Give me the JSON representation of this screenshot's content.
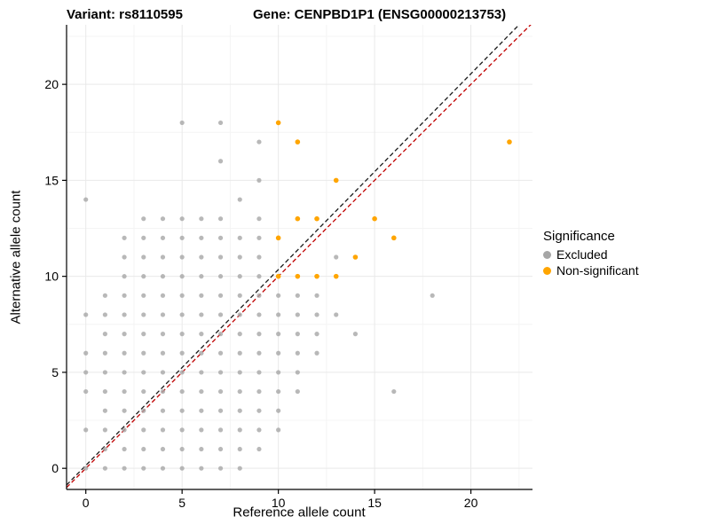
{
  "header": {
    "variant_title": "Variant: rs8110595",
    "gene_title": "Gene: CENPBD1P1 (ENSG00000213753)"
  },
  "chart_data": {
    "type": "scatter",
    "title": "",
    "xlabel": "Reference allele count",
    "ylabel": "Alternative allele count",
    "xlim": [
      -1,
      23.2
    ],
    "ylim": [
      -1.1,
      23.1
    ],
    "xticks": [
      0,
      5,
      10,
      15,
      20
    ],
    "yticks": [
      0,
      5,
      10,
      15,
      20
    ],
    "grid": true,
    "legend": {
      "title": "Significance",
      "position": "right",
      "items": [
        {
          "label": "Excluded",
          "color": "#a6a6a6"
        },
        {
          "label": "Non-significant",
          "color": "#FFA500"
        }
      ]
    },
    "series": [
      {
        "name": "Excluded",
        "color": "#a6a6a6",
        "opacity": 0.8,
        "radius": 2.6,
        "points": [
          [
            0,
            0
          ],
          [
            1,
            0
          ],
          [
            2,
            0
          ],
          [
            3,
            0
          ],
          [
            4,
            0
          ],
          [
            5,
            0
          ],
          [
            6,
            0
          ],
          [
            7,
            0
          ],
          [
            8,
            0
          ],
          [
            1,
            1
          ],
          [
            2,
            1
          ],
          [
            3,
            1
          ],
          [
            4,
            1
          ],
          [
            5,
            1
          ],
          [
            6,
            1
          ],
          [
            7,
            1
          ],
          [
            8,
            1
          ],
          [
            9,
            1
          ],
          [
            0,
            2
          ],
          [
            1,
            2
          ],
          [
            2,
            2
          ],
          [
            3,
            2
          ],
          [
            4,
            2
          ],
          [
            5,
            2
          ],
          [
            6,
            2
          ],
          [
            7,
            2
          ],
          [
            8,
            2
          ],
          [
            9,
            2
          ],
          [
            10,
            2
          ],
          [
            1,
            3
          ],
          [
            2,
            3
          ],
          [
            3,
            3
          ],
          [
            4,
            3
          ],
          [
            5,
            3
          ],
          [
            6,
            3
          ],
          [
            7,
            3
          ],
          [
            8,
            3
          ],
          [
            9,
            3
          ],
          [
            10,
            3
          ],
          [
            0,
            4
          ],
          [
            1,
            4
          ],
          [
            2,
            4
          ],
          [
            3,
            4
          ],
          [
            4,
            4
          ],
          [
            5,
            4
          ],
          [
            6,
            4
          ],
          [
            7,
            4
          ],
          [
            8,
            4
          ],
          [
            9,
            4
          ],
          [
            10,
            4
          ],
          [
            11,
            4
          ],
          [
            16,
            4
          ],
          [
            0,
            5
          ],
          [
            1,
            5
          ],
          [
            2,
            5
          ],
          [
            3,
            5
          ],
          [
            4,
            5
          ],
          [
            5,
            5
          ],
          [
            6,
            5
          ],
          [
            7,
            5
          ],
          [
            8,
            5
          ],
          [
            9,
            5
          ],
          [
            10,
            5
          ],
          [
            11,
            5
          ],
          [
            0,
            6
          ],
          [
            1,
            6
          ],
          [
            2,
            6
          ],
          [
            3,
            6
          ],
          [
            4,
            6
          ],
          [
            5,
            6
          ],
          [
            6,
            6
          ],
          [
            7,
            6
          ],
          [
            8,
            6
          ],
          [
            9,
            6
          ],
          [
            10,
            6
          ],
          [
            11,
            6
          ],
          [
            12,
            6
          ],
          [
            1,
            7
          ],
          [
            2,
            7
          ],
          [
            3,
            7
          ],
          [
            4,
            7
          ],
          [
            5,
            7
          ],
          [
            6,
            7
          ],
          [
            7,
            7
          ],
          [
            8,
            7
          ],
          [
            9,
            7
          ],
          [
            10,
            7
          ],
          [
            11,
            7
          ],
          [
            12,
            7
          ],
          [
            14,
            7
          ],
          [
            0,
            8
          ],
          [
            1,
            8
          ],
          [
            2,
            8
          ],
          [
            3,
            8
          ],
          [
            4,
            8
          ],
          [
            5,
            8
          ],
          [
            6,
            8
          ],
          [
            7,
            8
          ],
          [
            8,
            8
          ],
          [
            9,
            8
          ],
          [
            10,
            8
          ],
          [
            11,
            8
          ],
          [
            12,
            8
          ],
          [
            13,
            8
          ],
          [
            1,
            9
          ],
          [
            2,
            9
          ],
          [
            3,
            9
          ],
          [
            4,
            9
          ],
          [
            5,
            9
          ],
          [
            6,
            9
          ],
          [
            7,
            9
          ],
          [
            8,
            9
          ],
          [
            9,
            9
          ],
          [
            10,
            9
          ],
          [
            11,
            9
          ],
          [
            12,
            9
          ],
          [
            18,
            9
          ],
          [
            2,
            10
          ],
          [
            3,
            10
          ],
          [
            4,
            10
          ],
          [
            5,
            10
          ],
          [
            6,
            10
          ],
          [
            7,
            10
          ],
          [
            8,
            10
          ],
          [
            9,
            10
          ],
          [
            2,
            11
          ],
          [
            3,
            11
          ],
          [
            4,
            11
          ],
          [
            5,
            11
          ],
          [
            6,
            11
          ],
          [
            7,
            11
          ],
          [
            8,
            11
          ],
          [
            9,
            11
          ],
          [
            13,
            11
          ],
          [
            2,
            12
          ],
          [
            3,
            12
          ],
          [
            4,
            12
          ],
          [
            5,
            12
          ],
          [
            6,
            12
          ],
          [
            7,
            12
          ],
          [
            8,
            12
          ],
          [
            9,
            12
          ],
          [
            3,
            13
          ],
          [
            4,
            13
          ],
          [
            5,
            13
          ],
          [
            6,
            13
          ],
          [
            7,
            13
          ],
          [
            9,
            13
          ],
          [
            0,
            14
          ],
          [
            8,
            14
          ],
          [
            9,
            15
          ],
          [
            7,
            16
          ],
          [
            9,
            17
          ],
          [
            5,
            18
          ],
          [
            7,
            18
          ]
        ]
      },
      {
        "name": "Non-significant",
        "color": "#FFA500",
        "opacity": 1,
        "radius": 2.8,
        "points": [
          [
            10,
            18
          ],
          [
            11,
            17
          ],
          [
            22,
            17
          ],
          [
            13,
            15
          ],
          [
            11,
            13
          ],
          [
            12,
            13
          ],
          [
            15,
            13
          ],
          [
            10,
            12
          ],
          [
            16,
            12
          ],
          [
            14,
            11
          ],
          [
            10,
            10
          ],
          [
            11,
            10
          ],
          [
            12,
            10
          ],
          [
            13,
            10
          ]
        ]
      }
    ],
    "lines": [
      {
        "name": "identity-line",
        "style": "dashed",
        "color": "#c00000",
        "slope": 1,
        "intercept": 0
      },
      {
        "name": "fit-line",
        "style": "dashed",
        "color": "#1a1a1a",
        "slope": 1.02,
        "intercept": 0.15
      }
    ]
  }
}
